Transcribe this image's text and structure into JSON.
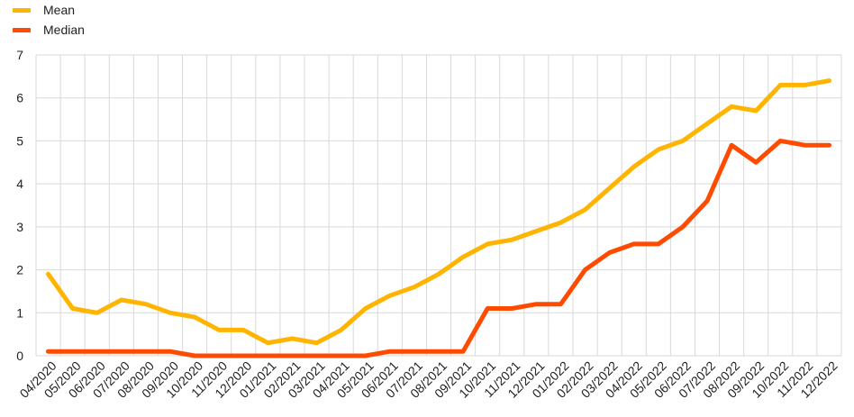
{
  "legend": {
    "mean_label": "Mean",
    "median_label": "Median"
  },
  "colors": {
    "mean": "#FFB400",
    "median": "#FF4B00",
    "grid": "#d9d9d9"
  },
  "chart_data": {
    "type": "line",
    "title": "",
    "xlabel": "",
    "ylabel": "",
    "ylim": [
      0,
      7
    ],
    "yticks": [
      0,
      1,
      2,
      3,
      4,
      5,
      6,
      7
    ],
    "grid": true,
    "legend_position": "top-left",
    "x": [
      "04/2020",
      "05/2020",
      "06/2020",
      "07/2020",
      "08/2020",
      "09/2020",
      "10/2020",
      "11/2020",
      "12/2020",
      "01/2021",
      "02/2021",
      "03/2021",
      "04/2021",
      "05/2021",
      "06/2021",
      "07/2021",
      "08/2021",
      "09/2021",
      "10/2021",
      "11/2021",
      "12/2021",
      "01/2022",
      "02/2022",
      "03/2022",
      "04/2022",
      "05/2022",
      "06/2022",
      "07/2022",
      "08/2022",
      "09/2022",
      "10/2022",
      "11/2022",
      "12/2022"
    ],
    "series": [
      {
        "name": "Mean",
        "values": [
          1.9,
          1.1,
          1.0,
          1.3,
          1.2,
          1.0,
          0.9,
          0.6,
          0.6,
          0.3,
          0.4,
          0.3,
          0.6,
          1.1,
          1.4,
          1.6,
          1.9,
          2.3,
          2.6,
          2.7,
          2.9,
          3.1,
          3.4,
          3.9,
          4.4,
          4.8,
          5.0,
          5.4,
          5.8,
          5.7,
          6.3,
          6.3,
          6.4
        ]
      },
      {
        "name": "Median",
        "values": [
          0.1,
          0.1,
          0.1,
          0.1,
          0.1,
          0.1,
          0.0,
          0.0,
          0.0,
          0.0,
          0.0,
          0.0,
          0.0,
          0.0,
          0.1,
          0.1,
          0.1,
          0.1,
          1.1,
          1.1,
          1.2,
          1.2,
          2.0,
          2.4,
          2.6,
          2.6,
          3.0,
          3.6,
          4.9,
          4.5,
          5.0,
          4.9,
          4.9
        ]
      }
    ]
  }
}
